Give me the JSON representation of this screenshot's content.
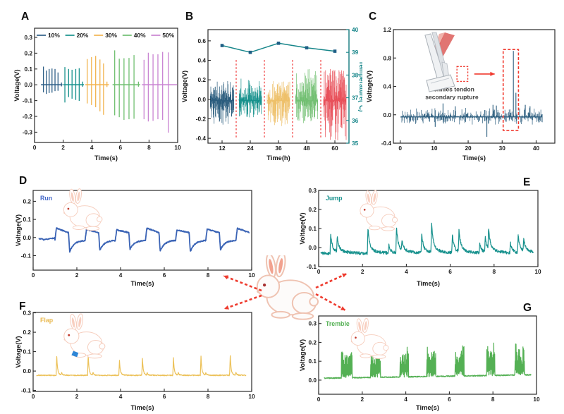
{
  "figure": {
    "background": "#ffffff"
  },
  "palette": {
    "navy": "#2e5f87",
    "teal": "#16918c",
    "gold": "#f2b44f",
    "green": "#6fbf70",
    "purple": "#c983d2",
    "red_cluster": "#e8515a",
    "dashed_red": "#f0392e",
    "run_blue": "#3a63b5",
    "jump_teal": "#17918d",
    "flap_gold": "#ecc158",
    "tremble_green": "#54b054",
    "temperature_axis": "#17868a"
  },
  "connectors": {
    "color": "#ee3b2e",
    "items": [
      {
        "target": "panel-d",
        "from": [
          371,
          412
        ],
        "to": [
          317,
          391
        ]
      },
      {
        "target": "panel-e",
        "from": [
          448,
          408
        ],
        "to": [
          492,
          388
        ]
      },
      {
        "target": "panel-f",
        "from": [
          371,
          419
        ],
        "to": [
          318,
          438
        ]
      },
      {
        "target": "panel-g",
        "from": [
          448,
          417
        ],
        "to": [
          490,
          440
        ]
      }
    ]
  },
  "chart_data": [
    {
      "panel": "A",
      "type": "spike-train",
      "xlabel": "Time(s)",
      "ylabel": "Voltage(V)",
      "xlim": [
        0,
        10
      ],
      "ylim": [
        -0.365,
        0.358
      ],
      "xticks": [
        0,
        2,
        4,
        6,
        8,
        10
      ],
      "xtick_labels": [
        "0",
        "2",
        "4",
        "6",
        "8",
        "10"
      ],
      "yticks": [
        0.3,
        0.2,
        0.1,
        0.0,
        -0.1,
        -0.2,
        -0.3
      ],
      "ytick_labels": [
        "0.3",
        "0.2",
        "0.1",
        "0.0",
        "-0.1",
        "-0.2",
        "-0.3"
      ],
      "legend": {
        "items": [
          {
            "label": "10%",
            "color": "#2e5f87"
          },
          {
            "label": "20%",
            "color": "#16918c"
          },
          {
            "label": "30%",
            "color": "#f2b44f"
          },
          {
            "label": "40%",
            "color": "#6fbf70"
          },
          {
            "label": "50%",
            "color": "#c983d2"
          }
        ]
      },
      "series": [
        {
          "kind": "spikes",
          "color": "#2e5f87",
          "base": 0,
          "range": [
            0.45,
            1.95
          ],
          "events": [
            [
              0.62,
              0.115,
              -0.048
            ],
            [
              0.82,
              0.09,
              -0.058
            ],
            [
              1.02,
              0.1,
              -0.052
            ],
            [
              1.22,
              0.103,
              -0.05
            ],
            [
              1.43,
              0.1,
              -0.04
            ],
            [
              1.64,
              0.078,
              -0.038
            ],
            [
              1.88,
              0.014,
              -0.01
            ]
          ]
        },
        {
          "kind": "spikes",
          "color": "#16918c",
          "base": 0,
          "range": [
            2.0,
            3.45
          ],
          "events": [
            [
              2.12,
              0.112,
              -0.112
            ],
            [
              2.38,
              0.1,
              -0.078
            ],
            [
              2.62,
              0.095,
              -0.088
            ],
            [
              2.88,
              0.1,
              -0.096
            ],
            [
              3.12,
              0.105,
              -0.102
            ],
            [
              3.36,
              0.02,
              -0.012
            ]
          ]
        },
        {
          "kind": "spikes",
          "color": "#f2b44f",
          "base": 0,
          "range": [
            3.55,
            5.2
          ],
          "events": [
            [
              3.68,
              0.163,
              -0.118
            ],
            [
              3.98,
              0.175,
              -0.128
            ],
            [
              4.27,
              0.183,
              -0.142
            ],
            [
              4.57,
              0.16,
              -0.168
            ],
            [
              4.82,
              0.135,
              -0.19
            ],
            [
              5.06,
              0.02,
              -0.014
            ]
          ]
        },
        {
          "kind": "spikes",
          "color": "#6fbf70",
          "base": 0,
          "range": [
            5.45,
            7.38
          ],
          "events": [
            [
              5.6,
              0.218,
              -0.193
            ],
            [
              5.92,
              0.165,
              -0.205
            ],
            [
              6.25,
              0.168,
              -0.222
            ],
            [
              6.6,
              0.17,
              -0.218
            ],
            [
              6.95,
              0.188,
              -0.215
            ],
            [
              7.26,
              0.02,
              -0.012
            ]
          ]
        },
        {
          "kind": "spikes",
          "color": "#c983d2",
          "base": 0,
          "range": [
            7.5,
            9.95
          ],
          "events": [
            [
              7.65,
              0.158,
              -0.218
            ],
            [
              7.95,
              0.203,
              -0.232
            ],
            [
              8.28,
              0.193,
              -0.228
            ],
            [
              8.62,
              0.193,
              -0.218
            ],
            [
              8.95,
              0.208,
              -0.222
            ],
            [
              9.35,
              0.205,
              -0.303
            ]
          ]
        }
      ]
    },
    {
      "panel": "B",
      "type": "noise-clusters+line",
      "xlabel": "Time(h)",
      "ylabel": "Voltage(V)",
      "y2label": "Temperature(℃)",
      "y2color": "#17868a",
      "xlim": [
        6,
        66
      ],
      "ylim": [
        -0.45,
        0.715
      ],
      "y2lim": [
        35,
        40
      ],
      "xticks": [
        12,
        24,
        36,
        48,
        60
      ],
      "xtick_labels": [
        "12",
        "24",
        "36",
        "48",
        "60"
      ],
      "yticks": [
        0.6,
        0.4,
        0.2,
        0.0,
        -0.2,
        -0.4
      ],
      "ytick_labels": [
        "0.6",
        "0.4",
        "0.2",
        "0.0",
        "-0.2",
        "-0.4"
      ],
      "y2ticks": [
        40,
        39,
        38,
        37,
        36,
        35
      ],
      "y2tick_labels": [
        "40",
        "39",
        "38",
        "37",
        "36",
        "35"
      ],
      "series": [
        {
          "kind": "noise",
          "color": "#2b5d7e",
          "center": 12,
          "hw": 5.0,
          "seed": 11,
          "pos": 0.2,
          "neg": 0.25,
          "base": -0.012,
          "n": 100,
          "pow": 2.1
        },
        {
          "kind": "noise",
          "color": "#16918c",
          "center": 24,
          "hw": 4.8,
          "seed": 12,
          "pos": 0.225,
          "neg": 0.185,
          "base": -0.012,
          "n": 100,
          "pow": 2.1
        },
        {
          "kind": "noise",
          "color": "#eec06a",
          "center": 36,
          "hw": 4.8,
          "seed": 13,
          "pos": 0.2,
          "neg": 0.27,
          "base": -0.012,
          "n": 100,
          "pow": 2.1
        },
        {
          "kind": "noise",
          "color": "#72bf72",
          "center": 48,
          "hw": 4.7,
          "seed": 14,
          "pos": 0.33,
          "neg": 0.23,
          "base": -0.015,
          "n": 95,
          "pow": 2.4
        },
        {
          "kind": "noise",
          "color": "#e8515a",
          "center": 60,
          "hw": 4.8,
          "seed": 15,
          "pos": 0.34,
          "neg": 0.42,
          "base": -0.012,
          "n": 105,
          "pow": 2.2
        },
        {
          "kind": "vlines",
          "color": "#f25050",
          "x": [
            18,
            30,
            42,
            54
          ],
          "y0": -0.39,
          "y1": 0.41
        },
        {
          "kind": "tline",
          "color": "#17868a",
          "marker_color": "#1f5f86",
          "x": [
            12,
            24,
            36,
            48,
            60
          ],
          "y": [
            39.3,
            39.0,
            39.4,
            39.2,
            39.05
          ]
        }
      ]
    },
    {
      "panel": "C",
      "type": "noise+event-spikes",
      "xlabel": "Time(s)",
      "ylabel": "Voltage(V)",
      "xlim": [
        -2,
        45.5
      ],
      "ylim": [
        -0.4,
        1.2
      ],
      "xticks": [
        0,
        10,
        20,
        30,
        40
      ],
      "xtick_labels": [
        "0",
        "10",
        "20",
        "30",
        "40"
      ],
      "yticks": [
        1.2,
        0.8,
        0.4,
        0.0,
        -0.4
      ],
      "ytick_labels": [
        "1.2",
        "0.8",
        "0.4",
        "0.0",
        "-0.4"
      ],
      "annotations": [
        {
          "x": 15.2,
          "y": 0.33,
          "lines": [
            "Achilles tendon",
            "secondary rupture"
          ],
          "color": "#3c3c3c"
        }
      ],
      "inset": {
        "name": "achilles-tendon-illustration",
        "x": 4,
        "y": 1.16
      },
      "series": [
        {
          "kind": "noise",
          "color": "#2b5d7e",
          "center": 21,
          "hw": 20.8,
          "seed": 21,
          "pos": 0.13,
          "neg": 0.11,
          "base": -0.03,
          "n": 300,
          "pow": 3.0,
          "spikes": [
            [
              10.3,
              -0.17
            ],
            [
              12.6,
              0.16
            ],
            [
              16.2,
              0.12
            ],
            [
              25.5,
              -0.31
            ],
            [
              27.3,
              0.14
            ],
            [
              28.3,
              0.13
            ],
            [
              33.3,
              0.9
            ],
            [
              34.05,
              0.31
            ],
            [
              36.8,
              0.14
            ],
            [
              38.2,
              0.12
            ]
          ]
        },
        {
          "kind": "rect",
          "color": "#f0392e",
          "x0": 30.3,
          "x1": 34.8,
          "y0": -0.22,
          "y1": 0.92,
          "dash": "4 2.5",
          "sw": 1.6
        },
        {
          "kind": "rect",
          "color": "#f0392e",
          "x0": 16.7,
          "x1": 19.9,
          "y0": 0.47,
          "y1": 0.68,
          "dash": "2.5 2",
          "sw": 1.3
        },
        {
          "kind": "arrow",
          "color": "#f0392e",
          "x0": 21.8,
          "y0": 0.575,
          "x1": 27.8,
          "y1": 0.575
        }
      ]
    },
    {
      "panel": "D",
      "type": "waveform",
      "xlabel": "Time(s)",
      "ylabel": "Voltage(V)",
      "xlim": [
        0,
        10
      ],
      "ylim": [
        -0.18,
        0.26
      ],
      "xticks": [
        0,
        2,
        4,
        6,
        8,
        10
      ],
      "xtick_labels": [
        "0",
        "2",
        "4",
        "6",
        "8",
        "10"
      ],
      "yticks": [
        0.2,
        0.1,
        0.0,
        -0.1
      ],
      "ytick_labels": [
        "0.2",
        "0.1",
        "0.0",
        "-0.1"
      ],
      "corner_label": {
        "text": "Run",
        "color": "#4468c8"
      },
      "rabbit": {
        "fx": 0.12,
        "fy": 0.0,
        "scale": 0.62
      },
      "series": [
        {
          "kind": "run",
          "color": "#3a63b5",
          "x0": 0.25,
          "x1": 9.9,
          "start": 1.0,
          "period": 1.38,
          "high": 0.046,
          "low": -0.072,
          "base": -0.013,
          "seed": 31
        }
      ]
    },
    {
      "panel": "E",
      "type": "spike-waveform",
      "xlabel": "Time(s)",
      "ylabel": "Voltage(V)",
      "xlim": [
        0,
        10
      ],
      "ylim": [
        -0.1,
        0.3
      ],
      "xticks": [
        0,
        2,
        4,
        6,
        8,
        10
      ],
      "xtick_labels": [
        "0",
        "2",
        "4",
        "6",
        "8",
        "10"
      ],
      "yticks": [
        0.3,
        0.2,
        0.1,
        0.0,
        -0.1
      ],
      "ytick_labels": [
        "0.3",
        "0.2",
        "0.1",
        "0.0",
        "-0.1"
      ],
      "corner_label": {
        "text": "Jump",
        "color": "#17918d"
      },
      "rabbit": {
        "fx": 0.17,
        "fy": 0.02,
        "scale": 0.6
      },
      "series": [
        {
          "kind": "spiketrain",
          "color": "#17918d",
          "x0": 0.1,
          "x1": 9.8,
          "base": -0.03,
          "jit": 0.016,
          "tau": 0.07,
          "tau2": 0.35,
          "f2": 0.2,
          "seed": 41,
          "events": [
            [
              0.55,
              0.1
            ],
            [
              0.85,
              0.075
            ],
            [
              2.25,
              0.13
            ],
            [
              3.2,
              0.04
            ],
            [
              3.55,
              0.13
            ],
            [
              3.8,
              0.05
            ],
            [
              4.7,
              0.1
            ],
            [
              5.15,
              0.15
            ],
            [
              6.1,
              0.095
            ],
            [
              6.4,
              0.115
            ],
            [
              7.35,
              0.05
            ],
            [
              7.6,
              0.08
            ],
            [
              7.75,
              0.11
            ],
            [
              8.75,
              0.05
            ],
            [
              9.1,
              0.09
            ],
            [
              9.35,
              0.065
            ]
          ]
        }
      ]
    },
    {
      "panel": "F",
      "type": "spike-waveform",
      "xlabel": "Time(s)",
      "ylabel": "Voltage(V)",
      "xlim": [
        0,
        10
      ],
      "ylim": [
        -0.105,
        0.302
      ],
      "xticks": [
        0,
        2,
        4,
        6,
        8,
        10
      ],
      "xtick_labels": [
        "0",
        "2",
        "4",
        "6",
        "8",
        "10"
      ],
      "yticks": [
        0.3,
        0.2,
        0.1,
        0.0,
        -0.1
      ],
      "ytick_labels": [
        "0.3",
        "0.2",
        "0.1",
        "0.0",
        "-0.1"
      ],
      "corner_label": {
        "text": "Flap",
        "color": "#e9b84e"
      },
      "rabbit": {
        "fx": 0.12,
        "fy": 0.04,
        "scale": 0.66,
        "accent": true
      },
      "series": [
        {
          "kind": "spiketrain",
          "color": "#ecc158",
          "x0": 0.15,
          "x1": 9.75,
          "base": -0.022,
          "jit": 0.005,
          "tau": 0.035,
          "tau2": 0.12,
          "f2": 0.12,
          "seed": 51,
          "events": [
            [
              1.08,
              0.101
            ],
            [
              1.3,
              0.013
            ],
            [
              2.52,
              0.106
            ],
            [
              2.74,
              0.013
            ],
            [
              3.95,
              0.078
            ],
            [
              5.0,
              0.088
            ],
            [
              5.22,
              0.011
            ],
            [
              6.42,
              0.092
            ],
            [
              6.64,
              0.012
            ],
            [
              7.68,
              0.101
            ],
            [
              7.9,
              0.013
            ],
            [
              9.02,
              0.106
            ],
            [
              9.28,
              0.014
            ]
          ]
        }
      ]
    },
    {
      "panel": "G",
      "type": "burst-waveform",
      "xlabel": "Time(s)",
      "ylabel": "Voltage(V)",
      "xlim": [
        0,
        10
      ],
      "ylim": [
        -0.075,
        0.34
      ],
      "xticks": [
        0,
        2,
        4,
        6,
        8,
        10
      ],
      "xtick_labels": [
        "0",
        "2",
        "4",
        "6",
        "8",
        "10"
      ],
      "yticks": [
        0.3,
        0.2,
        0.1,
        0.0
      ],
      "ytick_labels": [
        "0.3",
        "0.2",
        "0.1",
        "0.0"
      ],
      "corner_label": {
        "text": "Tremble",
        "color": "#54b054"
      },
      "rabbit": {
        "fx": 0.13,
        "fy": 0.05,
        "scale": 0.6
      },
      "series": [
        {
          "kind": "bursts",
          "color": "#54b054",
          "x0": 0.25,
          "x1": 9.75,
          "base0": 0.01,
          "base1": 0.028,
          "seed": 61,
          "events": [
            [
              1.05,
              0.5,
              0.135
            ],
            [
              2.38,
              0.45,
              0.145
            ],
            [
              3.72,
              0.4,
              0.145
            ],
            [
              4.95,
              0.42,
              0.147
            ],
            [
              6.25,
              0.42,
              0.148
            ],
            [
              7.7,
              0.38,
              0.158
            ],
            [
              9.0,
              0.45,
              0.152
            ]
          ]
        }
      ]
    }
  ]
}
